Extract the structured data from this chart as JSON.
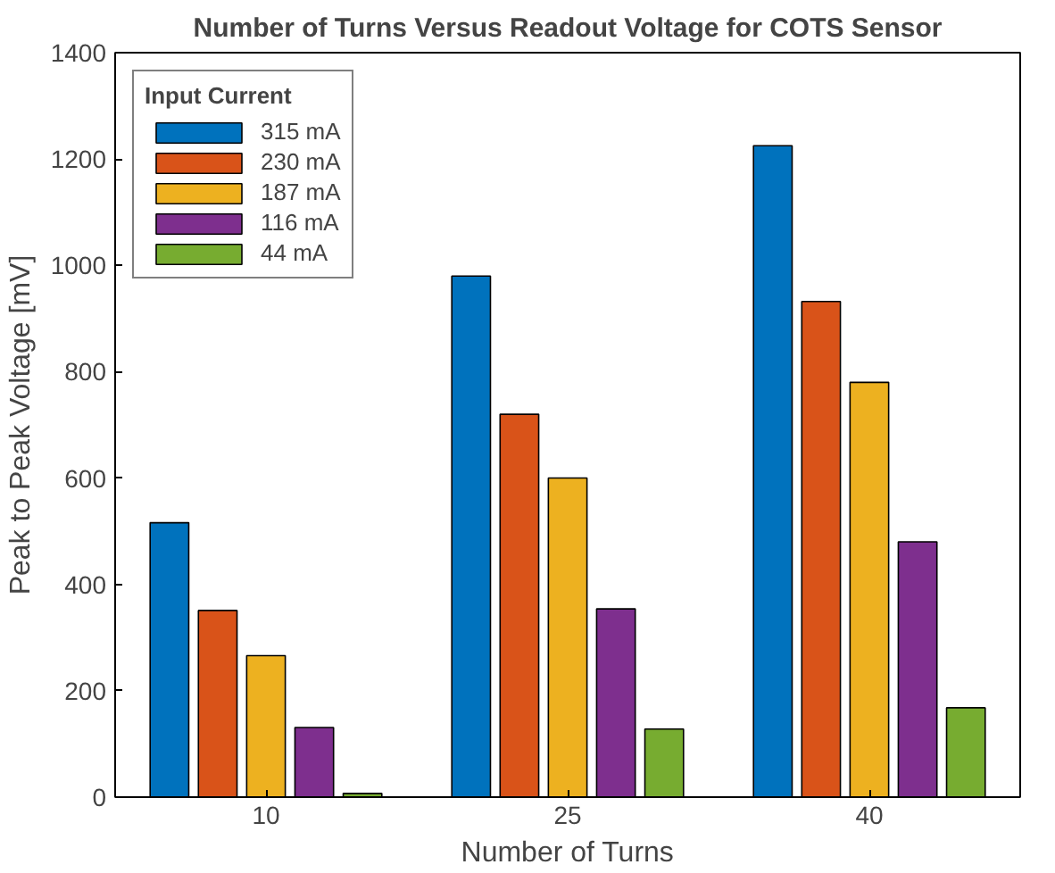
{
  "chart_data": {
    "type": "bar",
    "title": "Number of Turns Versus Readout Voltage for COTS Sensor",
    "xlabel": "Number of Turns",
    "ylabel": "Peak to Peak Voltage [mV]",
    "legend_title": "Input Current",
    "categories": [
      "10",
      "25",
      "40"
    ],
    "series": [
      {
        "name": "315 mA",
        "color": "#0072bd",
        "values": [
          516,
          980,
          1225
        ]
      },
      {
        "name": "230 mA",
        "color": "#d95319",
        "values": [
          351,
          720,
          932
        ]
      },
      {
        "name": "187 mA",
        "color": "#edb120",
        "values": [
          266,
          600,
          780
        ]
      },
      {
        "name": "116 mA",
        "color": "#7e2f8e",
        "values": [
          131,
          354,
          480
        ]
      },
      {
        "name": "44 mA",
        "color": "#77ac30",
        "values": [
          7,
          128,
          168
        ]
      }
    ],
    "ylim": [
      0,
      1400
    ],
    "yticks": [
      0,
      200,
      400,
      600,
      800,
      1000,
      1200,
      1400
    ],
    "grid": false,
    "legend": "top left"
  }
}
